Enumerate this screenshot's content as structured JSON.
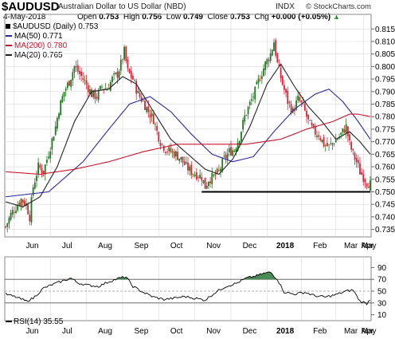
{
  "header": {
    "symbol": "$AUDUSD",
    "description": "Australian Dollar to US Dollar (NBD)",
    "exchange": "INDX",
    "credit": "© StockCharts.com",
    "date": "4-May-2018",
    "open_label": "Open",
    "open": "0.753",
    "high_label": "High",
    "high": "0.756",
    "low_label": "Low",
    "low": "0.749",
    "close_label": "Close",
    "close": "0.753",
    "chg_label": "Chg",
    "chg": "+0.000 (+0.05%)",
    "chg_arrow": "▲"
  },
  "legend": {
    "price": "$AUDUSD (Daily) 0.753",
    "ma50": "MA(50) 0.771",
    "ma200": "MA(200) 0.780",
    "ma20": "MA(20) 0.765"
  },
  "rsi_label": "RSI(14) 35.55",
  "colors": {
    "up_candle": "#1f7a1f",
    "down_candle": "#d6243a",
    "ma50": "#2a2a9c",
    "ma200": "#c8142c",
    "ma20": "#222222",
    "support_line": "#000000",
    "rsi_fill": "#4a8a55",
    "grid": "#d9d9d9"
  },
  "chart_data": [
    {
      "type": "candlestick",
      "title": "$AUDUSD (Daily)",
      "ylim": [
        0.732,
        0.817
      ],
      "y_ticks": [
        0.735,
        0.74,
        0.745,
        0.75,
        0.755,
        0.76,
        0.765,
        0.77,
        0.775,
        0.78,
        0.785,
        0.79,
        0.795,
        0.8,
        0.805,
        0.81,
        0.815
      ],
      "x_labels": [
        "Jun",
        "Jul",
        "Aug",
        "Sep",
        "Oct",
        "Nov",
        "Dec",
        "2018",
        "Feb",
        "Mar",
        "Apr",
        "May"
      ],
      "close_anchors": [
        [
          0,
          0.736
        ],
        [
          3,
          0.741
        ],
        [
          6,
          0.744
        ],
        [
          9,
          0.747
        ],
        [
          12,
          0.745
        ],
        [
          14,
          0.74
        ],
        [
          16,
          0.752
        ],
        [
          19,
          0.76
        ],
        [
          22,
          0.758
        ],
        [
          26,
          0.768
        ],
        [
          29,
          0.776
        ],
        [
          31,
          0.783
        ],
        [
          34,
          0.79
        ],
        [
          37,
          0.794
        ],
        [
          40,
          0.8
        ],
        [
          43,
          0.797
        ],
        [
          46,
          0.794
        ],
        [
          50,
          0.789
        ],
        [
          53,
          0.788
        ],
        [
          56,
          0.792
        ],
        [
          59,
          0.791
        ],
        [
          62,
          0.795
        ],
        [
          65,
          0.797
        ],
        [
          67,
          0.801
        ],
        [
          69,
          0.806
        ],
        [
          71,
          0.798
        ],
        [
          74,
          0.795
        ],
        [
          77,
          0.789
        ],
        [
          80,
          0.786
        ],
        [
          83,
          0.782
        ],
        [
          86,
          0.779
        ],
        [
          88,
          0.774
        ],
        [
          90,
          0.77
        ],
        [
          93,
          0.767
        ],
        [
          96,
          0.766
        ],
        [
          99,
          0.765
        ],
        [
          102,
          0.763
        ],
        [
          105,
          0.76
        ],
        [
          108,
          0.758
        ],
        [
          111,
          0.757
        ],
        [
          114,
          0.756
        ],
        [
          116,
          0.752
        ],
        [
          118,
          0.755
        ],
        [
          121,
          0.756
        ],
        [
          124,
          0.758
        ],
        [
          127,
          0.763
        ],
        [
          130,
          0.766
        ],
        [
          133,
          0.767
        ],
        [
          136,
          0.772
        ],
        [
          139,
          0.78
        ],
        [
          142,
          0.785
        ],
        [
          145,
          0.79
        ],
        [
          148,
          0.796
        ],
        [
          151,
          0.801
        ],
        [
          154,
          0.805
        ],
        [
          156,
          0.81
        ],
        [
          158,
          0.801
        ],
        [
          161,
          0.793
        ],
        [
          164,
          0.786
        ],
        [
          167,
          0.782
        ],
        [
          170,
          0.787
        ],
        [
          173,
          0.784
        ],
        [
          176,
          0.778
        ],
        [
          179,
          0.774
        ],
        [
          182,
          0.773
        ],
        [
          185,
          0.769
        ],
        [
          188,
          0.768
        ],
        [
          191,
          0.77
        ],
        [
          194,
          0.772
        ],
        [
          196,
          0.774
        ],
        [
          198,
          0.776
        ],
        [
          200,
          0.769
        ],
        [
          202,
          0.765
        ],
        [
          204,
          0.762
        ],
        [
          206,
          0.758
        ],
        [
          208,
          0.756
        ],
        [
          210,
          0.754
        ],
        [
          212,
          0.753
        ]
      ],
      "series": [
        {
          "name": "MA(50)",
          "last": 0.771,
          "points": [
            [
              0,
              0.748
            ],
            [
              25,
              0.75
            ],
            [
              45,
              0.762
            ],
            [
              60,
              0.775
            ],
            [
              72,
              0.785
            ],
            [
              84,
              0.788
            ],
            [
              96,
              0.782
            ],
            [
              108,
              0.773
            ],
            [
              120,
              0.765
            ],
            [
              132,
              0.762
            ],
            [
              144,
              0.764
            ],
            [
              156,
              0.774
            ],
            [
              168,
              0.783
            ],
            [
              180,
              0.789
            ],
            [
              188,
              0.791
            ],
            [
              196,
              0.786
            ],
            [
              204,
              0.779
            ],
            [
              212,
              0.771
            ]
          ]
        },
        {
          "name": "MA(200)",
          "last": 0.78,
          "points": [
            [
              0,
              0.758
            ],
            [
              20,
              0.757
            ],
            [
              40,
              0.759
            ],
            [
              60,
              0.762
            ],
            [
              80,
              0.766
            ],
            [
              100,
              0.769
            ],
            [
              120,
              0.769
            ],
            [
              140,
              0.769
            ],
            [
              160,
              0.771
            ],
            [
              175,
              0.775
            ],
            [
              190,
              0.778
            ],
            [
              200,
              0.781
            ],
            [
              205,
              0.781
            ],
            [
              212,
              0.78
            ]
          ]
        },
        {
          "name": "MA(20)",
          "last": 0.765,
          "points": [
            [
              0,
              0.746
            ],
            [
              10,
              0.744
            ],
            [
              20,
              0.748
            ],
            [
              30,
              0.76
            ],
            [
              40,
              0.778
            ],
            [
              50,
              0.79
            ],
            [
              60,
              0.791
            ],
            [
              68,
              0.796
            ],
            [
              76,
              0.793
            ],
            [
              86,
              0.782
            ],
            [
              96,
              0.771
            ],
            [
              106,
              0.765
            ],
            [
              116,
              0.759
            ],
            [
              124,
              0.757
            ],
            [
              132,
              0.763
            ],
            [
              142,
              0.776
            ],
            [
              152,
              0.793
            ],
            [
              160,
              0.801
            ],
            [
              168,
              0.792
            ],
            [
              176,
              0.784
            ],
            [
              184,
              0.778
            ],
            [
              192,
              0.771
            ],
            [
              200,
              0.774
            ],
            [
              206,
              0.77
            ],
            [
              212,
              0.765
            ]
          ]
        }
      ],
      "annotations": [
        {
          "type": "horizontal_line",
          "y": 0.75,
          "x_from": 114,
          "x_to": 212
        }
      ]
    },
    {
      "type": "line",
      "title": "RSI(14)",
      "ylim": [
        0,
        100
      ],
      "y_ticks": [
        10,
        30,
        50,
        70,
        90
      ],
      "reference_lines": [
        30,
        50,
        70
      ],
      "x_labels": [
        "Jun",
        "Jul",
        "Aug",
        "Sep",
        "Oct",
        "Nov",
        "Dec",
        "2018",
        "Feb",
        "Mar",
        "Apr",
        "May"
      ],
      "points": [
        [
          0,
          45
        ],
        [
          6,
          40
        ],
        [
          12,
          33
        ],
        [
          16,
          38
        ],
        [
          22,
          55
        ],
        [
          28,
          62
        ],
        [
          34,
          68
        ],
        [
          38,
          72
        ],
        [
          42,
          64
        ],
        [
          48,
          60
        ],
        [
          54,
          58
        ],
        [
          60,
          66
        ],
        [
          66,
          72
        ],
        [
          70,
          74
        ],
        [
          74,
          58
        ],
        [
          80,
          48
        ],
        [
          86,
          40
        ],
        [
          92,
          36
        ],
        [
          98,
          38
        ],
        [
          104,
          41
        ],
        [
          110,
          38
        ],
        [
          116,
          35
        ],
        [
          122,
          48
        ],
        [
          128,
          58
        ],
        [
          134,
          63
        ],
        [
          140,
          72
        ],
        [
          146,
          76
        ],
        [
          150,
          80
        ],
        [
          154,
          82
        ],
        [
          158,
          70
        ],
        [
          162,
          48
        ],
        [
          168,
          45
        ],
        [
          174,
          48
        ],
        [
          180,
          42
        ],
        [
          186,
          40
        ],
        [
          192,
          44
        ],
        [
          198,
          50
        ],
        [
          202,
          52
        ],
        [
          206,
          33
        ],
        [
          210,
          29
        ],
        [
          212,
          36
        ]
      ],
      "last": 35.55
    }
  ]
}
